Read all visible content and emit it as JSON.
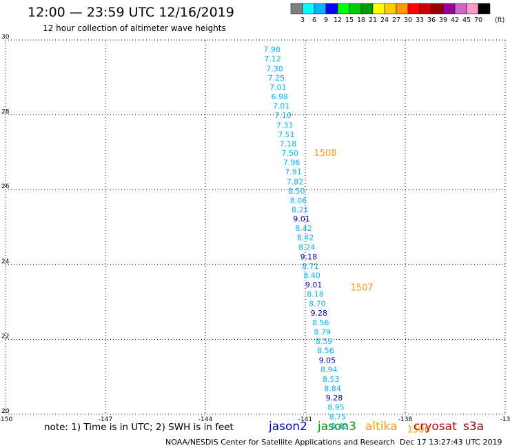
{
  "header": {
    "title": "12:00 — 23:59 UTC 12/16/2019",
    "subtitle": "12 hour collection of altimeter wave heights"
  },
  "colorbar": {
    "labels": [
      "3",
      "6",
      "9",
      "12",
      "15",
      "18",
      "21",
      "24",
      "27",
      "30",
      "33",
      "36",
      "39",
      "42",
      "45",
      "70"
    ],
    "unit": "(ft)",
    "colors": [
      "#808080",
      "#00ffff",
      "#00b4ff",
      "#0000ff",
      "#00ff00",
      "#00cc00",
      "#009900",
      "#ffff00",
      "#ffcc00",
      "#ff9900",
      "#ff0000",
      "#cc0000",
      "#990000",
      "#990099",
      "#cc66cc",
      "#ff99cc",
      "#000000"
    ]
  },
  "chart_data": {
    "type": "scatter",
    "x_ticks": [
      "-150",
      "-147",
      "-144",
      "-141",
      "-138",
      "-13"
    ],
    "y_ticks": [
      "30",
      "28",
      "26",
      "24",
      "22",
      "20"
    ],
    "xlim": [
      -150,
      -135
    ],
    "ylim": [
      20,
      30
    ],
    "grid": true,
    "points": [
      {
        "lon": -142.0,
        "lat": 29.75,
        "label": "7.98",
        "color": "#00b4ff"
      },
      {
        "lon": -141.98,
        "lat": 29.5,
        "label": "7.12",
        "color": "#00b4ff"
      },
      {
        "lon": -141.92,
        "lat": 29.24,
        "label": "7.30",
        "color": "#00b4ff"
      },
      {
        "lon": -141.87,
        "lat": 28.99,
        "label": "7.25",
        "color": "#00b4ff"
      },
      {
        "lon": -141.82,
        "lat": 28.74,
        "label": "7.01",
        "color": "#00b4ff"
      },
      {
        "lon": -141.77,
        "lat": 28.49,
        "label": "6.98",
        "color": "#00b4ff"
      },
      {
        "lon": -141.72,
        "lat": 28.24,
        "label": "7.01",
        "color": "#00b4ff"
      },
      {
        "lon": -141.67,
        "lat": 27.99,
        "label": "7.10",
        "color": "#00b4ff"
      },
      {
        "lon": -141.62,
        "lat": 27.73,
        "label": "7.33",
        "color": "#00b4ff"
      },
      {
        "lon": -141.57,
        "lat": 27.48,
        "label": "7.51",
        "color": "#00b4ff"
      },
      {
        "lon": -141.52,
        "lat": 27.23,
        "label": "7.18",
        "color": "#00b4ff"
      },
      {
        "lon": -141.46,
        "lat": 26.98,
        "label": "7.50",
        "color": "#00b4ff"
      },
      {
        "lon": -141.41,
        "lat": 26.73,
        "label": "7.96",
        "color": "#00b4ff"
      },
      {
        "lon": -141.36,
        "lat": 26.48,
        "label": "7.91",
        "color": "#00b4ff"
      },
      {
        "lon": -141.31,
        "lat": 26.22,
        "label": "7.82",
        "color": "#00b4ff"
      },
      {
        "lon": -141.26,
        "lat": 25.97,
        "label": "8.50",
        "color": "#00b4ff"
      },
      {
        "lon": -141.21,
        "lat": 25.72,
        "label": "8.06",
        "color": "#00b4ff"
      },
      {
        "lon": -141.16,
        "lat": 25.47,
        "label": "8.21",
        "color": "#00b4ff"
      },
      {
        "lon": -141.11,
        "lat": 25.22,
        "label": "9.01",
        "color": "#0000cc"
      },
      {
        "lon": -141.05,
        "lat": 24.97,
        "label": "8.42",
        "color": "#00b4ff"
      },
      {
        "lon": -141.0,
        "lat": 24.72,
        "label": "8.42",
        "color": "#00b4ff"
      },
      {
        "lon": -140.95,
        "lat": 24.47,
        "label": "8.24",
        "color": "#00b4ff"
      },
      {
        "lon": -140.9,
        "lat": 24.21,
        "label": "9.18",
        "color": "#0000cc"
      },
      {
        "lon": -140.85,
        "lat": 23.96,
        "label": "8.71",
        "color": "#00b4ff"
      },
      {
        "lon": -140.8,
        "lat": 23.71,
        "label": "8.40",
        "color": "#00b4ff"
      },
      {
        "lon": -140.75,
        "lat": 23.46,
        "label": "9.01",
        "color": "#0000cc"
      },
      {
        "lon": -140.7,
        "lat": 23.21,
        "label": "8.18",
        "color": "#00b4ff"
      },
      {
        "lon": -140.64,
        "lat": 22.96,
        "label": "8.70",
        "color": "#00b4ff"
      },
      {
        "lon": -140.59,
        "lat": 22.71,
        "label": "9.28",
        "color": "#0000cc"
      },
      {
        "lon": -140.54,
        "lat": 22.45,
        "label": "8.56",
        "color": "#00b4ff"
      },
      {
        "lon": -140.49,
        "lat": 22.2,
        "label": "8.79",
        "color": "#00b4ff"
      },
      {
        "lon": -140.44,
        "lat": 21.95,
        "label": "8.59",
        "color": "#00b4ff"
      },
      {
        "lon": -140.39,
        "lat": 21.7,
        "label": "8.56",
        "color": "#00b4ff"
      },
      {
        "lon": -140.34,
        "lat": 21.45,
        "label": "9.05",
        "color": "#0000cc"
      },
      {
        "lon": -140.29,
        "lat": 21.2,
        "label": "8.94",
        "color": "#00b4ff"
      },
      {
        "lon": -140.23,
        "lat": 20.94,
        "label": "8.53",
        "color": "#00b4ff"
      },
      {
        "lon": -140.18,
        "lat": 20.69,
        "label": "8.84",
        "color": "#00b4ff"
      },
      {
        "lon": -140.13,
        "lat": 20.44,
        "label": "9.28",
        "color": "#0000cc"
      },
      {
        "lon": -140.08,
        "lat": 20.19,
        "label": "8.95",
        "color": "#00b4ff"
      },
      {
        "lon": -140.03,
        "lat": 19.94,
        "label": "8.75",
        "color": "#00b4ff"
      },
      {
        "lon": -139.98,
        "lat": 19.69,
        "label": "8.42",
        "color": "#00b4ff"
      }
    ],
    "pass_labels": [
      {
        "lon": -140.4,
        "lat": 27.0,
        "label": "1508",
        "color": "#ff9900"
      },
      {
        "lon": -139.3,
        "lat": 23.4,
        "label": "1507",
        "color": "#ff9900"
      },
      {
        "lon": -137.6,
        "lat": 19.6,
        "label": "1506",
        "color": "#ff9900"
      }
    ]
  },
  "footer": {
    "note": "note: 1) Time is in UTC; 2) SWH is in feet",
    "satellites": [
      {
        "name": "jason2",
        "color": "#0000cc"
      },
      {
        "name": "jason3",
        "color": "#009900"
      },
      {
        "name": "altika",
        "color": "#ff9900"
      },
      {
        "name": "cryosat",
        "color": "#cc0000"
      },
      {
        "name": "s3a",
        "color": "#990000"
      }
    ],
    "credit": "NOAA/NESDIS Center for Satellite Applications and Research",
    "timestamp": "Dec 17 13:27:43 UTC 2019"
  }
}
